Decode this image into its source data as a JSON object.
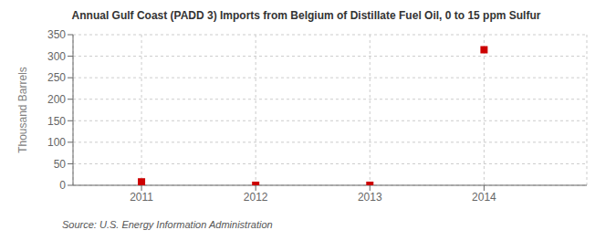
{
  "chart_data": {
    "type": "scatter",
    "title": "Annual Gulf Coast (PADD 3) Imports from Belgium of Distillate Fuel Oil, 0 to 15 ppm Sulfur",
    "ylabel": "Thousand Barrels",
    "annotation": "Source: U.S. Energy Information Administration",
    "x": [
      2011,
      2012,
      2013,
      2014
    ],
    "values": [
      8,
      0,
      0,
      315
    ],
    "color": "#cc0000",
    "marker": "square",
    "xlim": [
      2010.4,
      2014.9
    ],
    "xticks": [
      2011,
      2012,
      2013,
      2014
    ],
    "ylim": [
      0,
      350
    ],
    "yticks": [
      0,
      50,
      100,
      150,
      200,
      250,
      300,
      350
    ],
    "grid": true
  }
}
